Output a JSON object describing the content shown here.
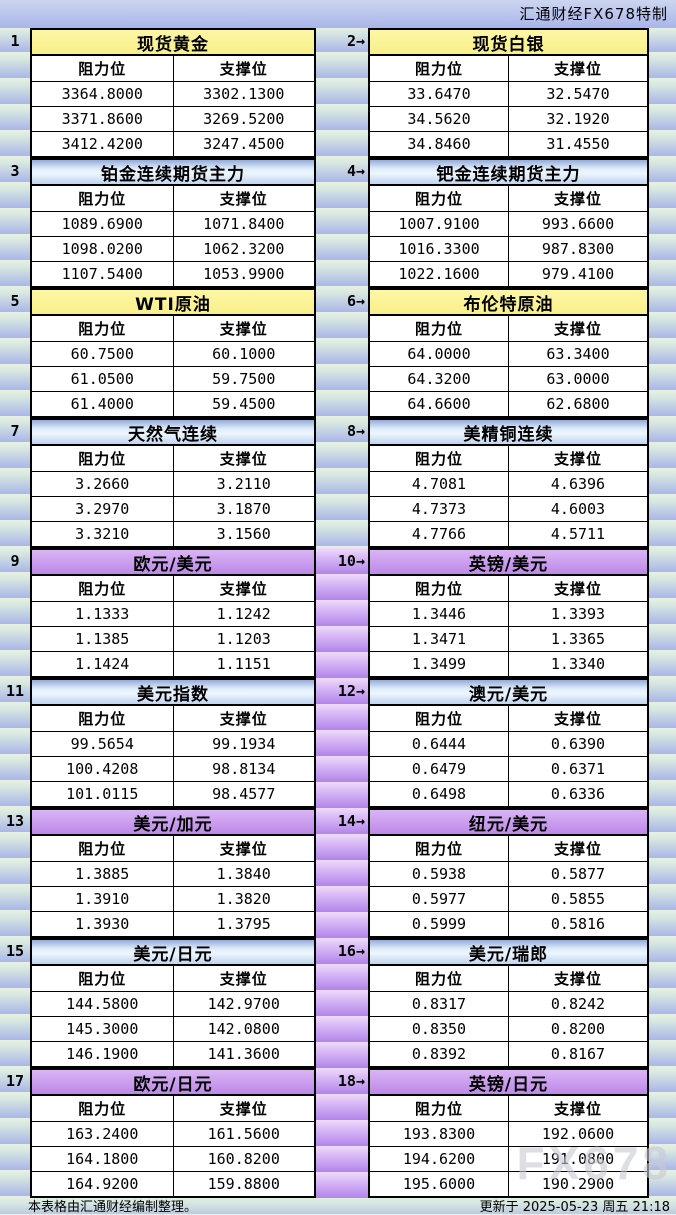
{
  "header": {
    "brand": "汇通财经FX678特制"
  },
  "labels": {
    "resistance": "阻力位",
    "support": "支撑位"
  },
  "footer": {
    "note": "本表格由汇通财经编制整理。",
    "updated": "更新于 2025-05-23 周五 21:18",
    "watermark": "FX678"
  },
  "accent_colors": {
    "title_yellow": "#f9ef88",
    "title_blue": "#bfd4f0",
    "title_purple": "#bd88e8",
    "gutter_purple": "#b184ea",
    "band_green": "#e7f1e2",
    "band_blue": "#aab6e9"
  },
  "sections": [
    {
      "gutter_purple": false,
      "left": {
        "no": "1",
        "title": "现货黄金",
        "theme": "yellow",
        "rows": [
          [
            "3364.8000",
            "3302.1300"
          ],
          [
            "3371.8600",
            "3269.5200"
          ],
          [
            "3412.4200",
            "3247.4500"
          ]
        ]
      },
      "right": {
        "no": "2→",
        "title": "现货白银",
        "theme": "yellow",
        "rows": [
          [
            "33.6470",
            "32.5470"
          ],
          [
            "34.5620",
            "32.1920"
          ],
          [
            "34.8460",
            "31.4550"
          ]
        ]
      }
    },
    {
      "gutter_purple": false,
      "left": {
        "no": "3",
        "title": "铂金连续期货主力",
        "theme": "blue",
        "rows": [
          [
            "1089.6900",
            "1071.8400"
          ],
          [
            "1098.0200",
            "1062.3200"
          ],
          [
            "1107.5400",
            "1053.9900"
          ]
        ]
      },
      "right": {
        "no": "4→",
        "title": "钯金连续期货主力",
        "theme": "blue",
        "rows": [
          [
            "1007.9100",
            "993.6600"
          ],
          [
            "1016.3300",
            "987.8300"
          ],
          [
            "1022.1600",
            "979.4100"
          ]
        ]
      }
    },
    {
      "gutter_purple": false,
      "left": {
        "no": "5",
        "title": "WTI原油",
        "theme": "yellow",
        "rows": [
          [
            "60.7500",
            "60.1000"
          ],
          [
            "61.0500",
            "59.7500"
          ],
          [
            "61.4000",
            "59.4500"
          ]
        ]
      },
      "right": {
        "no": "6→",
        "title": "布伦特原油",
        "theme": "yellow",
        "rows": [
          [
            "64.0000",
            "63.3400"
          ],
          [
            "64.3200",
            "63.0000"
          ],
          [
            "64.6600",
            "62.6800"
          ]
        ]
      }
    },
    {
      "gutter_purple": false,
      "left": {
        "no": "7",
        "title": "天然气连续",
        "theme": "blue",
        "rows": [
          [
            "3.2660",
            "3.2110"
          ],
          [
            "3.2970",
            "3.1870"
          ],
          [
            "3.3210",
            "3.1560"
          ]
        ]
      },
      "right": {
        "no": "8→",
        "title": "美精铜连续",
        "theme": "blue",
        "rows": [
          [
            "4.7081",
            "4.6396"
          ],
          [
            "4.7373",
            "4.6003"
          ],
          [
            "4.7766",
            "4.5711"
          ]
        ]
      }
    },
    {
      "gutter_purple": true,
      "left": {
        "no": "9",
        "title": "欧元/美元",
        "theme": "purple",
        "rows": [
          [
            "1.1333",
            "1.1242"
          ],
          [
            "1.1385",
            "1.1203"
          ],
          [
            "1.1424",
            "1.1151"
          ]
        ]
      },
      "right": {
        "no": "10→",
        "title": "英镑/美元",
        "theme": "purple",
        "rows": [
          [
            "1.3446",
            "1.3393"
          ],
          [
            "1.3471",
            "1.3365"
          ],
          [
            "1.3499",
            "1.3340"
          ]
        ]
      }
    },
    {
      "gutter_purple": true,
      "left": {
        "no": "11",
        "title": "美元指数",
        "theme": "blue",
        "rows": [
          [
            "99.5654",
            "99.1934"
          ],
          [
            "100.4208",
            "98.8134"
          ],
          [
            "101.0115",
            "98.4577"
          ]
        ]
      },
      "right": {
        "no": "12→",
        "title": "澳元/美元",
        "theme": "blue",
        "rows": [
          [
            "0.6444",
            "0.6390"
          ],
          [
            "0.6479",
            "0.6371"
          ],
          [
            "0.6498",
            "0.6336"
          ]
        ]
      }
    },
    {
      "gutter_purple": true,
      "left": {
        "no": "13",
        "title": "美元/加元",
        "theme": "purple",
        "rows": [
          [
            "1.3885",
            "1.3840"
          ],
          [
            "1.3910",
            "1.3820"
          ],
          [
            "1.3930",
            "1.3795"
          ]
        ]
      },
      "right": {
        "no": "14→",
        "title": "纽元/美元",
        "theme": "purple",
        "rows": [
          [
            "0.5938",
            "0.5877"
          ],
          [
            "0.5977",
            "0.5855"
          ],
          [
            "0.5999",
            "0.5816"
          ]
        ]
      }
    },
    {
      "gutter_purple": true,
      "left": {
        "no": "15",
        "title": "美元/日元",
        "theme": "blue",
        "rows": [
          [
            "144.5800",
            "142.9700"
          ],
          [
            "145.3000",
            "142.0800"
          ],
          [
            "146.1900",
            "141.3600"
          ]
        ]
      },
      "right": {
        "no": "16→",
        "title": "美元/瑞郎",
        "theme": "blue",
        "rows": [
          [
            "0.8317",
            "0.8242"
          ],
          [
            "0.8350",
            "0.8200"
          ],
          [
            "0.8392",
            "0.8167"
          ]
        ]
      }
    },
    {
      "gutter_purple": true,
      "left": {
        "no": "17",
        "title": "欧元/日元",
        "theme": "purple",
        "rows": [
          [
            "163.2400",
            "161.5600"
          ],
          [
            "164.1800",
            "160.8200"
          ],
          [
            "164.9200",
            "159.8800"
          ]
        ]
      },
      "right": {
        "no": "18→",
        "title": "英镑/日元",
        "theme": "purple",
        "rows": [
          [
            "193.8300",
            "192.0600"
          ],
          [
            "194.6200",
            "191.0800"
          ],
          [
            "195.6000",
            "190.2900"
          ]
        ]
      }
    }
  ]
}
